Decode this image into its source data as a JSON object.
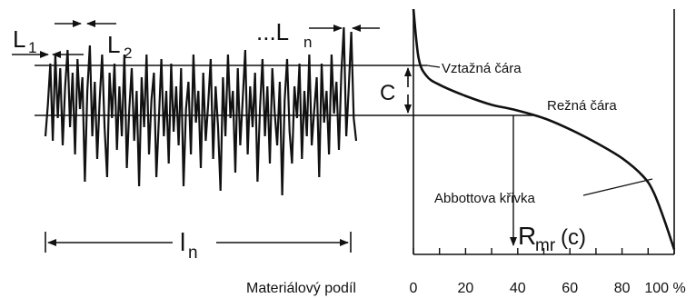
{
  "labels": {
    "l1_main": "L",
    "l1_sub": "1",
    "l2_main": "L",
    "l2_sub": "2",
    "ln_prefix": "...L",
    "ln_sub": "n",
    "evaluation_length_main": "l",
    "evaluation_length_sub": "n",
    "c": "C",
    "reference_line": "Vztažná čára",
    "cut_line": "Režná čára",
    "abbott_curve": "Abbottova křivka",
    "rmr_main": "R",
    "rmr_sub": "mr",
    "rmr_arg": "(c)",
    "x_axis_label": "Materiálový podíl"
  },
  "axis_ticks": [
    "0",
    "20",
    "40",
    "60",
    "80",
    "100 %"
  ],
  "chart_data": {
    "type": "line",
    "x": [
      0,
      2,
      5,
      10,
      20,
      30,
      38,
      50,
      60,
      70,
      80,
      88,
      92,
      96,
      100
    ],
    "y": [
      100,
      78,
      70,
      66,
      61,
      57,
      55,
      51,
      46,
      40,
      33,
      25,
      18,
      6,
      -8
    ],
    "xlim": [
      0,
      100
    ],
    "xlabel": "Materiálový podíl",
    "ylabel": "",
    "cut_material_ratio": 38
  },
  "profile_y": [
    150,
    115,
    70,
    155,
    60,
    130,
    75,
    160,
    95,
    55,
    140,
    80,
    170,
    65,
    120,
    85,
    200,
    100,
    50,
    150,
    90,
    175,
    110,
    60,
    140,
    195,
    80,
    130,
    70,
    165,
    95,
    150,
    60,
    185,
    120,
    75,
    155,
    100,
    205,
    85,
    140,
    60,
    170,
    110,
    80,
    195,
    130,
    65,
    150,
    100,
    180,
    70,
    145,
    95,
    160,
    75,
    205,
    120,
    90,
    170,
    60,
    135,
    100,
    185,
    80,
    155,
    115,
    65,
    175,
    95,
    140,
    210,
    85,
    150,
    60,
    130,
    100,
    190,
    75,
    160,
    110,
    55,
    170,
    95,
    140,
    80,
    200,
    120,
    65,
    150,
    95,
    180,
    75,
    125,
    160,
    90,
    215,
    110,
    65,
    145,
    180,
    95,
    130,
    70,
    175,
    100,
    150,
    60,
    160,
    120,
    85,
    195,
    70,
    135,
    100,
    170,
    60,
    125,
    90,
    165,
    80,
    30,
    150,
    95,
    35,
    130,
    155
  ]
}
